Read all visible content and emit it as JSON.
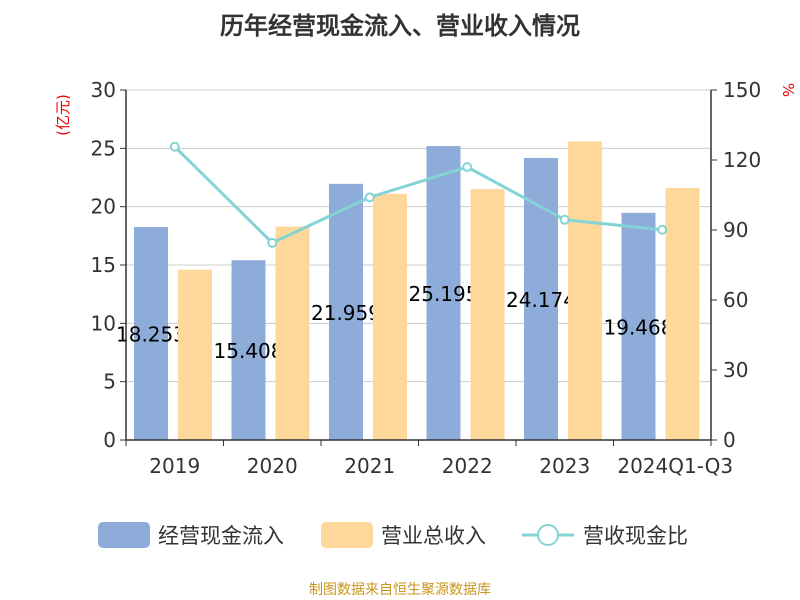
{
  "title": "历年经营现金流入、营业收入情况",
  "footer": "制图数据来自恒生聚源数据库",
  "chart_data": {
    "type": "bar",
    "categories": [
      "2019",
      "2020",
      "2021",
      "2022",
      "2023",
      "2024Q1-Q3"
    ],
    "series": [
      {
        "name": "经营现金流入",
        "type": "bar",
        "axis": "left",
        "color": "#8eacd9",
        "values": [
          18.253,
          15.408,
          21.959,
          25.195,
          24.174,
          19.468
        ],
        "labels": [
          "18.253",
          "15.408",
          "21.959",
          "25.195",
          "24.174",
          "19.468"
        ]
      },
      {
        "name": "营业总收入",
        "type": "bar",
        "axis": "left",
        "color": "#fdd89a",
        "values": [
          14.6,
          18.3,
          21.1,
          21.5,
          25.6,
          21.6
        ]
      },
      {
        "name": "营收现金比",
        "type": "line",
        "axis": "right",
        "color": "#84d3d5",
        "values": [
          125.7,
          84.5,
          104,
          117,
          94.4,
          90.1
        ]
      }
    ],
    "ylabel": "(亿元)",
    "ylabel_right": "%",
    "ylim": [
      0,
      30
    ],
    "yticks": [
      "0",
      "5",
      "10",
      "15",
      "20",
      "25",
      "30"
    ],
    "ylim_right": [
      0,
      150
    ],
    "yticks_right": [
      "0",
      "30",
      "60",
      "90",
      "120",
      "150"
    ],
    "grid": true,
    "legend": "bottom"
  }
}
